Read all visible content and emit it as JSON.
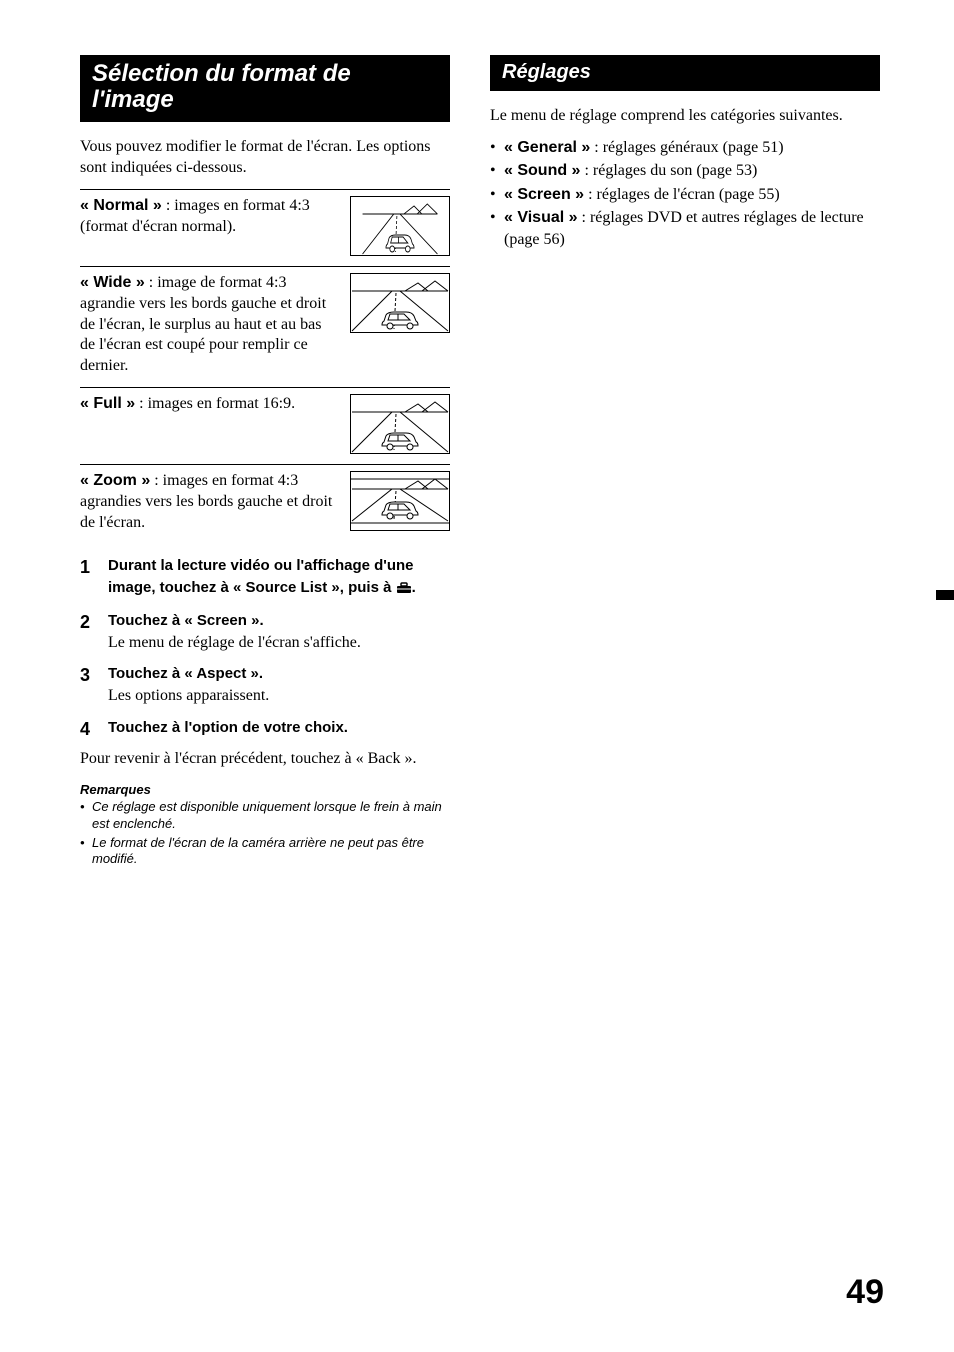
{
  "left": {
    "title": "Sélection du format de l'image",
    "intro": "Vous pouvez modifier le format de l'écran. Les options sont indiquées ci-dessous.",
    "aspects": [
      {
        "label": "« Normal »",
        "desc": " : images en format 4:3 (format d'écran normal).",
        "type": "normal"
      },
      {
        "label": "« Wide »",
        "desc": " : image de format 4:3 agrandie vers les bords gauche et droit de l'écran, le surplus au haut et au bas de l'écran est coupé pour remplir ce dernier.",
        "type": "wide"
      },
      {
        "label": "« Full »",
        "desc": " : images en format 16:9.",
        "type": "full"
      },
      {
        "label": "« Zoom »",
        "desc": " : images en format 4:3 agrandies vers les bords gauche et droit de l'écran.",
        "type": "zoom"
      }
    ],
    "steps": [
      {
        "head_a": "Durant la lecture vidéo ou l'affichage d'une image, touchez à « Source List », puis à ",
        "head_b": ".",
        "has_icon": true
      },
      {
        "head_a": "Touchez à « Screen ».",
        "sub": "Le menu de réglage de l'écran s'affiche."
      },
      {
        "head_a": "Touchez à « Aspect ».",
        "sub": "Les options apparaissent."
      },
      {
        "head_a": "Touchez à l'option de votre choix."
      }
    ],
    "after": "Pour revenir à l'écran précédent, touchez à « Back ».",
    "remarks_head": "Remarques",
    "remarks": [
      "Ce réglage est disponible uniquement lorsque le frein à main est enclenché.",
      "Le format de l'écran de la caméra arrière ne peut pas être modifié."
    ]
  },
  "right": {
    "title": "Réglages",
    "intro": "Le menu de réglage comprend les catégories suivantes.",
    "bullets": [
      {
        "label": "« General »",
        "desc": " : réglages généraux (page 51)"
      },
      {
        "label": "« Sound »",
        "desc": " : réglages du son (page 53)"
      },
      {
        "label": "« Screen »",
        "desc": " : réglages de l'écran (page 55)"
      },
      {
        "label": "« Visual »",
        "desc": " : réglages DVD et autres réglages de lecture (page 56)"
      }
    ]
  },
  "page_number": "49",
  "svg_defs": {
    "stroke": "#000000",
    "fill": "#ffffff"
  }
}
